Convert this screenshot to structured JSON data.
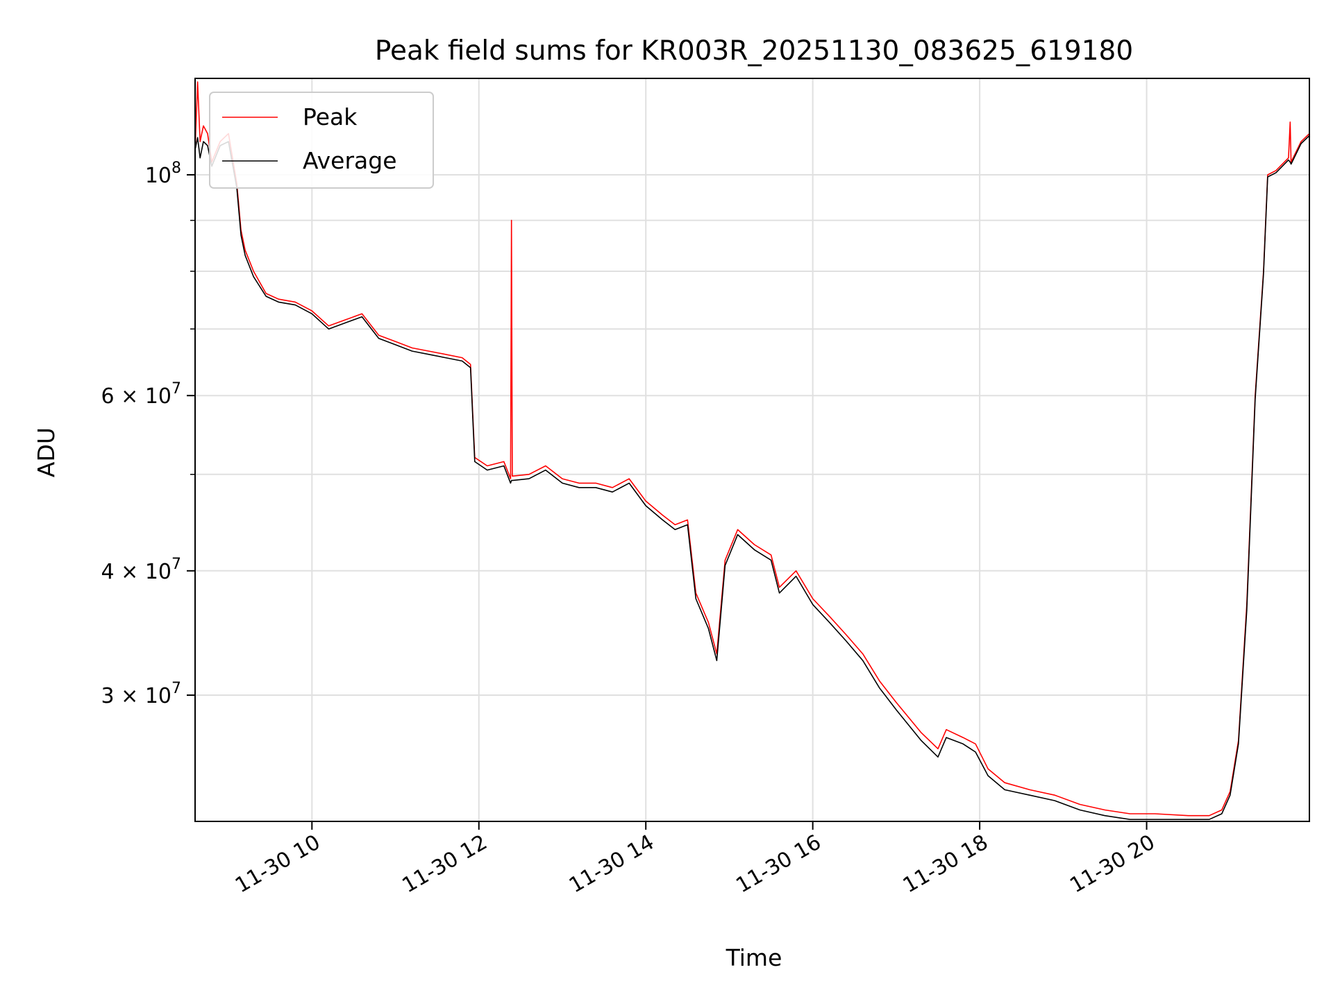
{
  "chart_data": {
    "type": "line",
    "title": "Peak field sums for KR003R_20251130_083625_619180",
    "xlabel": "Time",
    "ylabel": "ADU",
    "x_unit": "hours since 11-30 00:00",
    "xlim": [
      8.6,
      21.95
    ],
    "ylim": [
      22400000,
      125000000
    ],
    "yscale": "log",
    "grid": true,
    "legend": "top-left",
    "x_ticks": [
      {
        "x": 10,
        "label": "11-30 10"
      },
      {
        "x": 12,
        "label": "11-30 12"
      },
      {
        "x": 14,
        "label": "11-30 14"
      },
      {
        "x": 16,
        "label": "11-30 16"
      },
      {
        "x": 18,
        "label": "11-30 18"
      },
      {
        "x": 20,
        "label": "11-30 20"
      }
    ],
    "y_ticks": [
      {
        "y": 100000000,
        "mant": "",
        "base": "10",
        "exp": "8"
      },
      {
        "y": 60000000,
        "mant": "6 × ",
        "base": "10",
        "exp": "7"
      },
      {
        "y": 40000000,
        "mant": "4 × ",
        "base": "10",
        "exp": "7"
      },
      {
        "y": 30000000,
        "mant": "3 × ",
        "base": "10",
        "exp": "7"
      }
    ],
    "y_minor_ticks": [
      90000000,
      80000000,
      70000000,
      50000000
    ],
    "series": [
      {
        "name": "Peak",
        "color": "#ff0000",
        "points": [
          [
            8.6,
            106000000
          ],
          [
            8.63,
            124000000
          ],
          [
            8.66,
            108000000
          ],
          [
            8.7,
            112000000
          ],
          [
            8.75,
            110000000
          ],
          [
            8.8,
            103000000
          ],
          [
            8.9,
            108000000
          ],
          [
            9.0,
            110000000
          ],
          [
            9.1,
            98000000
          ],
          [
            9.15,
            88000000
          ],
          [
            9.2,
            84000000
          ],
          [
            9.3,
            80000000
          ],
          [
            9.45,
            76000000
          ],
          [
            9.6,
            75000000
          ],
          [
            9.8,
            74500000
          ],
          [
            10.0,
            73000000
          ],
          [
            10.2,
            70500000
          ],
          [
            10.4,
            71500000
          ],
          [
            10.6,
            72500000
          ],
          [
            10.8,
            69000000
          ],
          [
            11.0,
            68000000
          ],
          [
            11.2,
            67000000
          ],
          [
            11.4,
            66500000
          ],
          [
            11.6,
            66000000
          ],
          [
            11.8,
            65500000
          ],
          [
            11.9,
            64500000
          ],
          [
            11.95,
            52000000
          ],
          [
            12.1,
            51000000
          ],
          [
            12.3,
            51500000
          ],
          [
            12.38,
            49500000
          ],
          [
            12.39,
            90000000
          ],
          [
            12.4,
            49800000
          ],
          [
            12.6,
            50000000
          ],
          [
            12.8,
            51000000
          ],
          [
            13.0,
            49500000
          ],
          [
            13.2,
            49000000
          ],
          [
            13.4,
            49000000
          ],
          [
            13.6,
            48500000
          ],
          [
            13.8,
            49500000
          ],
          [
            14.0,
            47000000
          ],
          [
            14.2,
            45500000
          ],
          [
            14.35,
            44500000
          ],
          [
            14.5,
            45000000
          ],
          [
            14.6,
            38000000
          ],
          [
            14.75,
            35500000
          ],
          [
            14.85,
            33000000
          ],
          [
            14.95,
            41000000
          ],
          [
            15.1,
            44000000
          ],
          [
            15.3,
            42500000
          ],
          [
            15.5,
            41500000
          ],
          [
            15.6,
            38500000
          ],
          [
            15.8,
            40000000
          ],
          [
            16.0,
            37500000
          ],
          [
            16.2,
            36000000
          ],
          [
            16.4,
            34500000
          ],
          [
            16.6,
            33000000
          ],
          [
            16.8,
            31000000
          ],
          [
            17.0,
            29500000
          ],
          [
            17.3,
            27500000
          ],
          [
            17.5,
            26500000
          ],
          [
            17.6,
            27700000
          ],
          [
            17.8,
            27200000
          ],
          [
            17.95,
            26800000
          ],
          [
            18.1,
            25300000
          ],
          [
            18.3,
            24500000
          ],
          [
            18.6,
            24100000
          ],
          [
            18.9,
            23800000
          ],
          [
            19.2,
            23300000
          ],
          [
            19.5,
            23000000
          ],
          [
            19.8,
            22800000
          ],
          [
            20.1,
            22800000
          ],
          [
            20.5,
            22700000
          ],
          [
            20.75,
            22700000
          ],
          [
            20.9,
            23000000
          ],
          [
            21.0,
            24000000
          ],
          [
            21.1,
            27000000
          ],
          [
            21.2,
            37000000
          ],
          [
            21.3,
            60000000
          ],
          [
            21.4,
            80000000
          ],
          [
            21.45,
            100000000
          ],
          [
            21.55,
            101000000
          ],
          [
            21.7,
            104000000
          ],
          [
            21.72,
            113000000
          ],
          [
            21.73,
            103000000
          ],
          [
            21.85,
            108000000
          ],
          [
            21.95,
            110000000
          ]
        ]
      },
      {
        "name": "Average",
        "color": "#000000",
        "points": [
          [
            8.6,
            106000000
          ],
          [
            8.63,
            109000000
          ],
          [
            8.66,
            104000000
          ],
          [
            8.7,
            108000000
          ],
          [
            8.75,
            107000000
          ],
          [
            8.8,
            102000000
          ],
          [
            8.9,
            107000000
          ],
          [
            9.0,
            108000000
          ],
          [
            9.1,
            97000000
          ],
          [
            9.15,
            87000000
          ],
          [
            9.2,
            83000000
          ],
          [
            9.3,
            79000000
          ],
          [
            9.45,
            75500000
          ],
          [
            9.6,
            74500000
          ],
          [
            9.8,
            74000000
          ],
          [
            10.0,
            72500000
          ],
          [
            10.2,
            70000000
          ],
          [
            10.4,
            71000000
          ],
          [
            10.6,
            72000000
          ],
          [
            10.8,
            68500000
          ],
          [
            11.0,
            67500000
          ],
          [
            11.2,
            66500000
          ],
          [
            11.4,
            66000000
          ],
          [
            11.6,
            65500000
          ],
          [
            11.8,
            65000000
          ],
          [
            11.9,
            64000000
          ],
          [
            11.95,
            51500000
          ],
          [
            12.1,
            50500000
          ],
          [
            12.3,
            51000000
          ],
          [
            12.38,
            49000000
          ],
          [
            12.39,
            49300000
          ],
          [
            12.4,
            49300000
          ],
          [
            12.6,
            49500000
          ],
          [
            12.8,
            50500000
          ],
          [
            13.0,
            49000000
          ],
          [
            13.2,
            48500000
          ],
          [
            13.4,
            48500000
          ],
          [
            13.6,
            48000000
          ],
          [
            13.8,
            49000000
          ],
          [
            14.0,
            46500000
          ],
          [
            14.2,
            45000000
          ],
          [
            14.35,
            44000000
          ],
          [
            14.5,
            44500000
          ],
          [
            14.6,
            37500000
          ],
          [
            14.75,
            35000000
          ],
          [
            14.85,
            32500000
          ],
          [
            14.95,
            40500000
          ],
          [
            15.1,
            43500000
          ],
          [
            15.3,
            42000000
          ],
          [
            15.5,
            41000000
          ],
          [
            15.6,
            38000000
          ],
          [
            15.8,
            39500000
          ],
          [
            16.0,
            37000000
          ],
          [
            16.2,
            35500000
          ],
          [
            16.4,
            34000000
          ],
          [
            16.6,
            32500000
          ],
          [
            16.8,
            30500000
          ],
          [
            17.0,
            29000000
          ],
          [
            17.3,
            27000000
          ],
          [
            17.5,
            26000000
          ],
          [
            17.6,
            27200000
          ],
          [
            17.8,
            26800000
          ],
          [
            17.95,
            26300000
          ],
          [
            18.1,
            24900000
          ],
          [
            18.3,
            24100000
          ],
          [
            18.6,
            23800000
          ],
          [
            18.9,
            23500000
          ],
          [
            19.2,
            23000000
          ],
          [
            19.5,
            22700000
          ],
          [
            19.8,
            22500000
          ],
          [
            20.1,
            22500000
          ],
          [
            20.5,
            22500000
          ],
          [
            20.75,
            22500000
          ],
          [
            20.9,
            22800000
          ],
          [
            21.0,
            23800000
          ],
          [
            21.1,
            26800000
          ],
          [
            21.2,
            36500000
          ],
          [
            21.3,
            59500000
          ],
          [
            21.4,
            79500000
          ],
          [
            21.45,
            99500000
          ],
          [
            21.55,
            100500000
          ],
          [
            21.7,
            103500000
          ],
          [
            21.72,
            103000000
          ],
          [
            21.73,
            102500000
          ],
          [
            21.85,
            107500000
          ],
          [
            21.95,
            109500000
          ]
        ]
      }
    ]
  }
}
